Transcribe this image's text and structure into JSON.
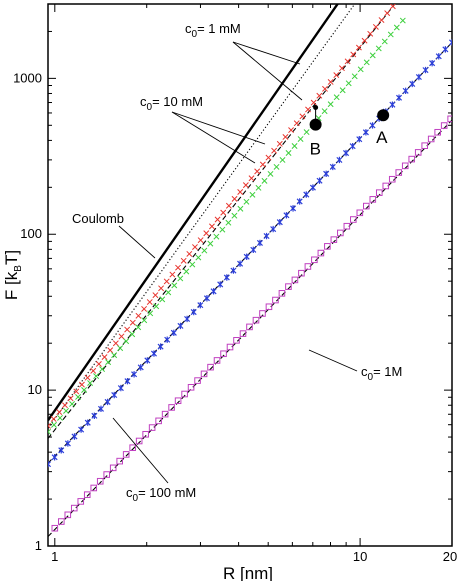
{
  "chart_data": {
    "type": "line",
    "xscale": "log",
    "yscale": "log",
    "xlim": [
      0.95,
      20
    ],
    "ylim": [
      1,
      3000
    ],
    "xlabel": {
      "main": "R",
      "unit": "[nm]"
    },
    "ylabel": {
      "main": "F",
      "unit_open": "[k",
      "unit_sub": "B",
      "unit_close": "T]"
    },
    "x_ticks": [
      {
        "value": 1,
        "label": "1"
      },
      {
        "value": 10,
        "label": "10"
      },
      {
        "value": 20,
        "label": "20"
      }
    ],
    "y_ticks": [
      {
        "value": 1,
        "label": "1"
      },
      {
        "value": 10,
        "label": "10"
      },
      {
        "value": 100,
        "label": "100"
      },
      {
        "value": 1000,
        "label": "1000"
      }
    ],
    "lines": [
      {
        "id": "coulomb",
        "style": "solid-thick",
        "x": [
          0.95,
          8.44
        ],
        "y": [
          6.4,
          3000
        ]
      },
      {
        "id": "c1mM-theory",
        "style": "dotted",
        "x": [
          0.95,
          9.6
        ],
        "y": [
          5.7,
          3000
        ]
      },
      {
        "id": "c10mM-theory",
        "style": "dashed",
        "x": [
          0.95,
          13.0
        ],
        "y": [
          4.9,
          3000
        ]
      },
      {
        "id": "c100mM-theory",
        "style": "dashed",
        "x": [
          0.95,
          20.0
        ],
        "y": [
          3.4,
          1700
        ]
      },
      {
        "id": "c1M-theory",
        "style": "dashed",
        "x": [
          0.95,
          20.0
        ],
        "y": [
          1.15,
          540
        ]
      }
    ],
    "series": [
      {
        "id": "c1mM",
        "marker": "x",
        "color": "#e8352e",
        "x0": 0.95,
        "y0": 5.9,
        "x1": 12.8,
        "y1": 2900,
        "count": 62
      },
      {
        "id": "c10mM",
        "marker": "x",
        "color": "#3ccf3c",
        "x0": 0.95,
        "y0": 5.4,
        "x1": 13.8,
        "y1": 2350,
        "count": 60
      },
      {
        "id": "c100mM",
        "marker": "asterisk",
        "color": "#2c3fd9",
        "x0": 0.95,
        "y0": 3.35,
        "x1": 20.0,
        "y1": 1700,
        "count": 62
      },
      {
        "id": "c1M",
        "marker": "square",
        "color": "#c040c0",
        "x0": 1.0,
        "y0": 1.3,
        "x1": 19.8,
        "y1": 550,
        "count": 62
      }
    ],
    "points": [
      {
        "label": "A",
        "x": 11.9,
        "y": 580
      },
      {
        "label": "B",
        "x": 7.15,
        "y": 505,
        "stem_to_y": 650
      }
    ],
    "annotations": [
      {
        "id": "ann-c1mM",
        "text_pre": "c",
        "text_sub": "0",
        "text_post": "= 1 mM"
      },
      {
        "id": "ann-c10mM",
        "text_pre": "c",
        "text_sub": "0",
        "text_post": "= 10 mM"
      },
      {
        "id": "ann-coulomb",
        "text_pre": "Coulomb",
        "text_sub": "",
        "text_post": ""
      },
      {
        "id": "ann-c1M",
        "text_pre": "c",
        "text_sub": "0",
        "text_post": "= 1M"
      },
      {
        "id": "ann-c100mM",
        "text_pre": "c",
        "text_sub": "0",
        "text_post": "= 100 mM"
      }
    ]
  }
}
